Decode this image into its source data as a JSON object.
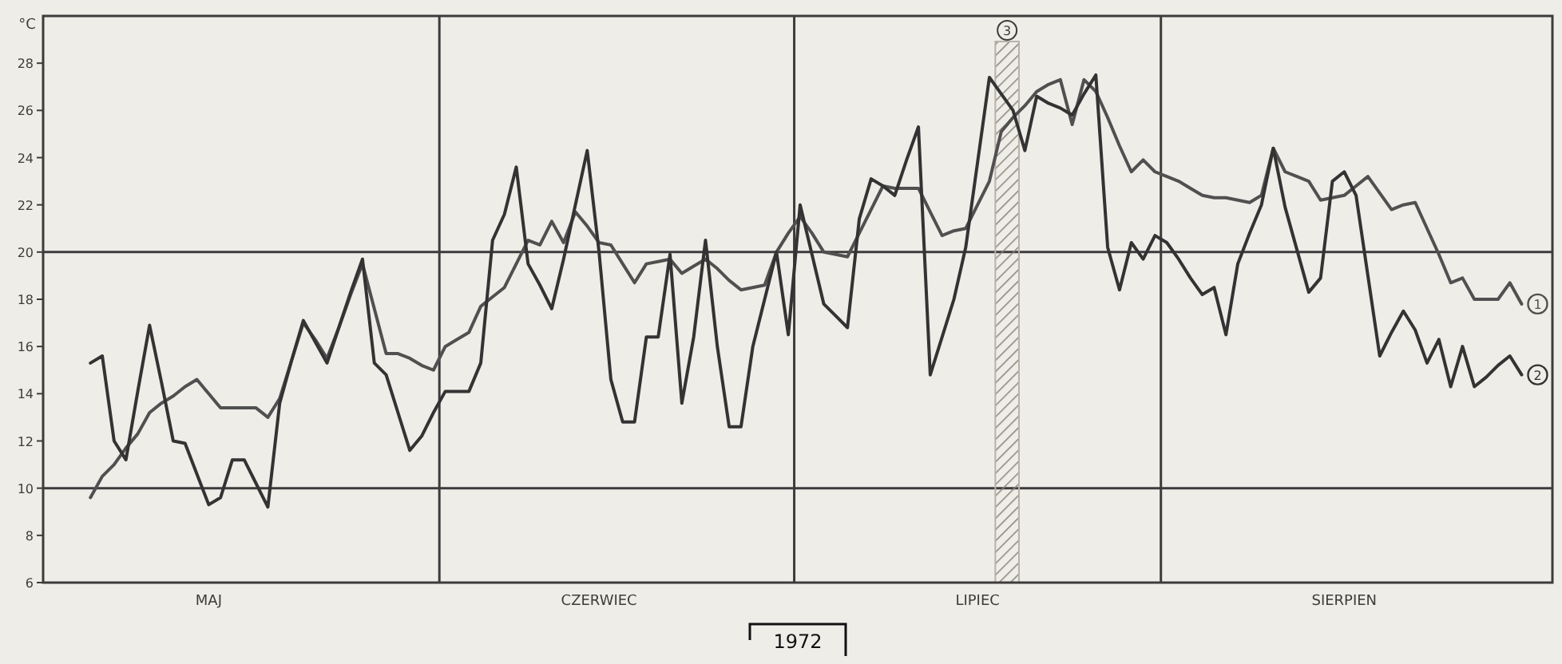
{
  "chart_data": {
    "type": "line",
    "ylabel": "°C",
    "ylim": [
      6,
      30
    ],
    "categories": [
      null,
      null,
      null,
      null,
      null,
      null,
      null,
      null,
      null,
      null,
      null,
      "MAJ",
      null,
      null,
      null,
      null,
      null,
      null,
      null,
      null,
      null,
      null,
      null,
      null,
      null,
      null,
      null,
      null,
      null,
      null,
      null,
      null,
      null,
      null,
      null,
      null,
      null,
      null,
      null,
      null,
      null,
      null,
      null,
      null,
      "CZERWIEC",
      null,
      null,
      null,
      null,
      null,
      null,
      null,
      null,
      null,
      null,
      null,
      null,
      null,
      null,
      null,
      null,
      null,
      null,
      null,
      null,
      null,
      null,
      null,
      null,
      null,
      null,
      null,
      null,
      null,
      null,
      null,
      "LIPIEC",
      null,
      null,
      null,
      null,
      null,
      null,
      null,
      null,
      null,
      null,
      null,
      null,
      null,
      null,
      null,
      null,
      null,
      null,
      null,
      null,
      null,
      null,
      null,
      null,
      null,
      null,
      null,
      null,
      null,
      null,
      "SIERPIEN",
      null,
      null,
      null,
      null,
      null,
      null,
      null,
      null,
      null,
      null,
      null,
      null,
      null,
      null,
      null
    ],
    "yticks": [
      6,
      8,
      10,
      12,
      14,
      16,
      18,
      20,
      22,
      24,
      26,
      28
    ],
    "grid": false,
    "marker": "none",
    "line_style": "solid",
    "ref_lines": [
      {
        "axis": "y",
        "value": 10
      },
      {
        "axis": "y",
        "value": 20
      }
    ],
    "annotations": [
      "1972",
      "3"
    ],
    "series": [
      {
        "name": "1",
        "color": "#505050",
        "values": [
          null,
          9.6,
          10.5,
          11,
          11.7,
          12.3,
          13.2,
          13.6,
          13.9,
          14.3,
          14.6,
          14,
          13.4,
          13.4,
          13.4,
          13.4,
          13,
          13.8,
          15.4,
          17,
          16.3,
          15.5,
          16.8,
          18.2,
          19.5,
          17.6,
          15.7,
          15.7,
          15.5,
          15.2,
          15,
          16,
          16.3,
          16.6,
          17.7,
          18.1,
          18.5,
          19.5,
          20.5,
          20.3,
          21.3,
          20.4,
          21.7,
          21.1,
          20.4,
          20.3,
          19.5,
          18.7,
          19.5,
          19.6,
          19.7,
          19.1,
          19.4,
          19.7,
          19.3,
          18.8,
          18.4,
          18.5,
          18.6,
          20,
          20.8,
          21.5,
          20.8,
          20,
          19.9,
          19.8,
          20.8,
          21.8,
          22.8,
          22.7,
          22.7,
          22.7,
          21.7,
          20.7,
          20.9,
          21,
          22,
          23,
          25.1,
          25.7,
          26.2,
          26.8,
          27.1,
          27.3,
          25.4,
          27.3,
          26.8,
          25.7,
          24.5,
          23.4,
          23.9,
          23.4,
          23.2,
          23,
          22.7,
          22.4,
          22.3,
          22.3,
          22.2,
          22.1,
          22.4,
          24.4,
          23.4,
          23.2,
          23,
          22.2,
          22.3,
          22.4,
          22.8,
          23.2,
          22.5,
          21.8,
          22,
          22.1,
          21,
          19.9,
          18.7,
          18.9,
          18,
          18,
          18,
          18.7,
          17.8
        ]
      },
      {
        "name": "2",
        "color": "#333333",
        "values": [
          null,
          15.3,
          15.6,
          12,
          11.2,
          14.1,
          16.9,
          14.5,
          12,
          11.9,
          10.6,
          9.3,
          9.6,
          11.2,
          11.2,
          10.2,
          9.2,
          13.6,
          15.4,
          17.1,
          16.2,
          15.3,
          16.8,
          18.3,
          19.7,
          15.3,
          14.8,
          13.2,
          11.6,
          12.2,
          13.2,
          14.1,
          14.1,
          14.1,
          15.3,
          20.5,
          21.6,
          23.6,
          19.5,
          18.6,
          17.6,
          19.7,
          22,
          24.3,
          20,
          14.6,
          12.8,
          12.8,
          16.4,
          16.4,
          19.9,
          13.6,
          16.4,
          20.5,
          16,
          12.6,
          12.6,
          16,
          18,
          20,
          16.5,
          22,
          19.9,
          17.8,
          17.3,
          16.8,
          21.4,
          23.1,
          22.8,
          22.4,
          23.9,
          25.3,
          14.8,
          16.4,
          18,
          20.2,
          23.8,
          27.4,
          26.7,
          26,
          24.3,
          26.6,
          26.3,
          26.1,
          25.8,
          26.7,
          27.5,
          20.2,
          18.4,
          20.4,
          19.7,
          20.7,
          20.4,
          19.7,
          18.9,
          18.2,
          18.5,
          16.5,
          19.5,
          20.8,
          22,
          24.4,
          21.9,
          20.1,
          18.3,
          18.9,
          23,
          23.4,
          22.4,
          19,
          15.6,
          16.6,
          17.5,
          16.7,
          15.3,
          16.3,
          14.3,
          16,
          14.3,
          14.7,
          15.2,
          15.6,
          14.8
        ]
      }
    ]
  }
}
